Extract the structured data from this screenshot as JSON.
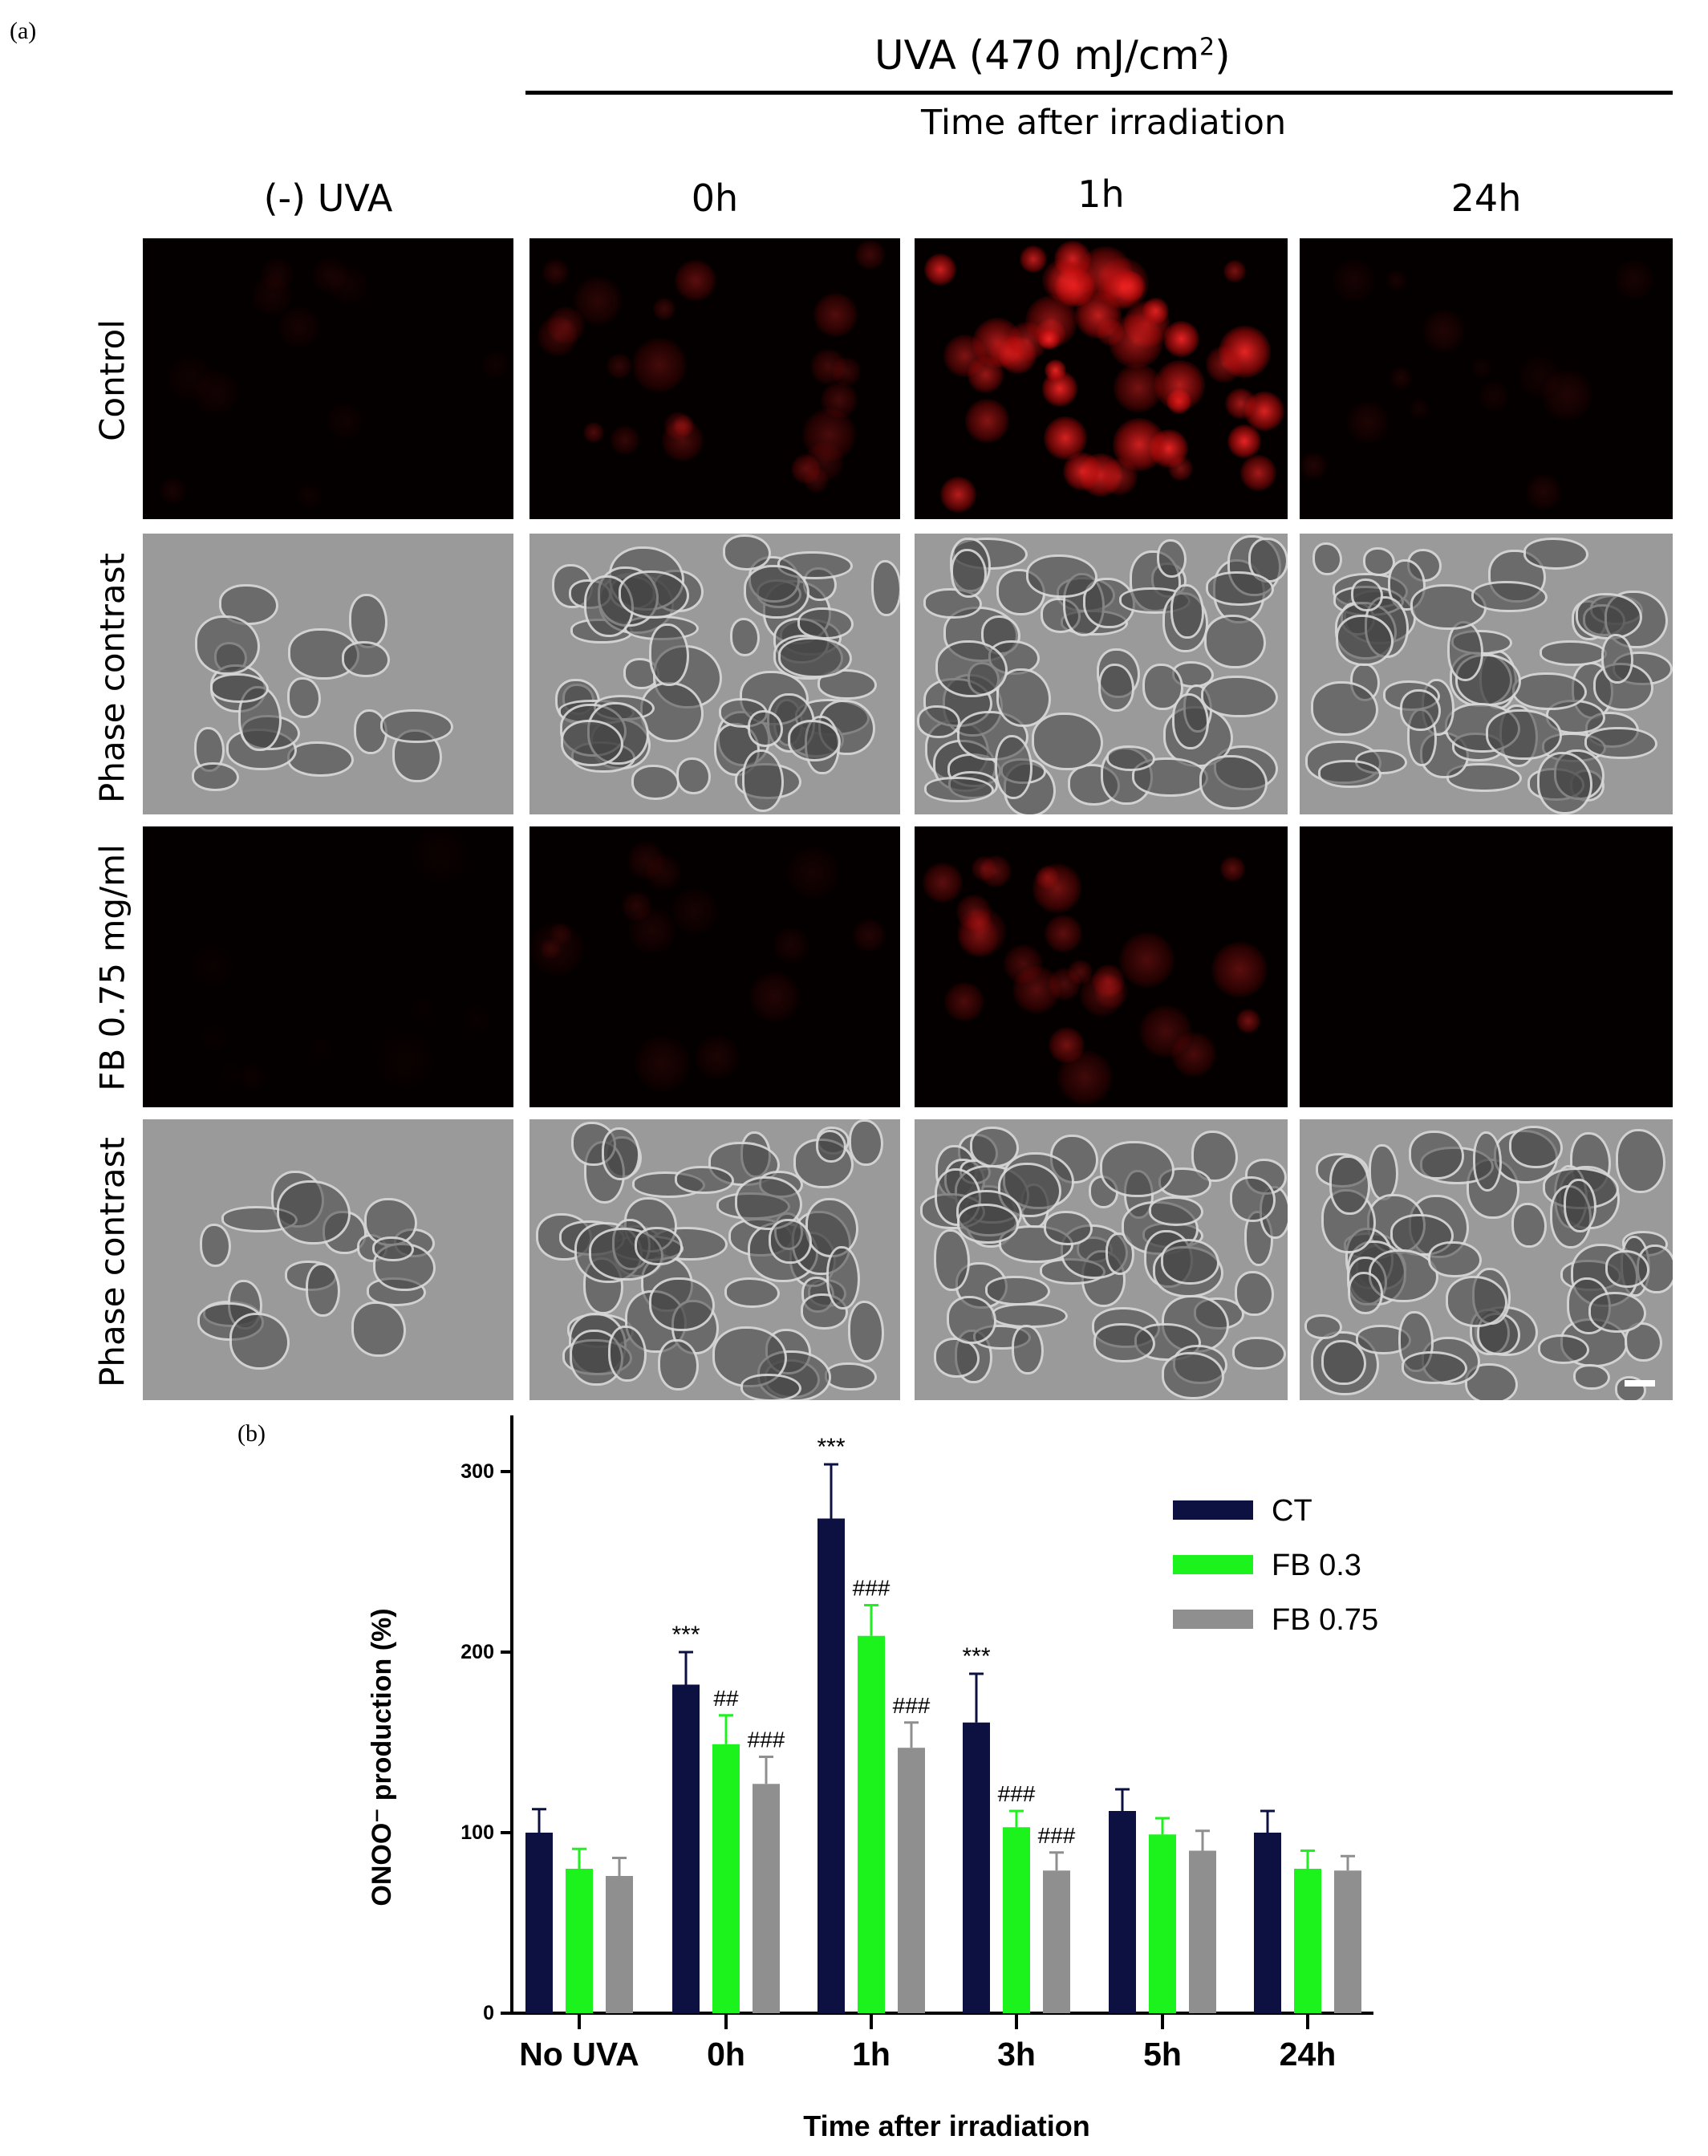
{
  "panel_a": {
    "label": "(a)",
    "uva_title": "UVA (470 mJ/cm",
    "uva_title_sup": "2",
    "uva_title_end": ")",
    "subtitle": "Time after irradiation",
    "columns": [
      "(-) UVA",
      "0h",
      "1h",
      "24h"
    ],
    "rows": [
      "Control",
      "Phase contrast",
      "FB 0.75 mg/ml",
      "Phase contrast"
    ],
    "fluor_color": "#ff2020"
  },
  "panel_b": {
    "label": "(b)"
  },
  "chart_data": {
    "type": "bar",
    "categories": [
      "No UVA",
      "0h",
      "1h",
      "3h",
      "5h",
      "24h"
    ],
    "xlabel": "Time after irradiation",
    "ylabel": "ONOO⁻ production (%)",
    "ylim": [
      0,
      320
    ],
    "yticks": [
      0,
      100,
      200,
      300
    ],
    "legend_position": "top-right",
    "series": [
      {
        "name": "CT",
        "color": "#0d1142",
        "values": [
          100,
          182,
          274,
          161,
          112,
          100
        ],
        "errors": [
          13,
          18,
          30,
          27,
          12,
          12
        ]
      },
      {
        "name": "FB 0.3",
        "color": "#1cf21c",
        "values": [
          80,
          149,
          209,
          103,
          99,
          80
        ],
        "errors": [
          11,
          16,
          17,
          9,
          9,
          10
        ]
      },
      {
        "name": "FB 0.75",
        "color": "#8f8f8f",
        "values": [
          76,
          127,
          147,
          79,
          90,
          79
        ],
        "errors": [
          10,
          15,
          14,
          10,
          11,
          8
        ]
      }
    ],
    "annotations": [
      [
        "",
        "***",
        "***",
        "***",
        "",
        ""
      ],
      [
        "",
        "##",
        "###",
        "###",
        "",
        ""
      ],
      [
        "",
        "###",
        "###",
        "###",
        "",
        ""
      ]
    ]
  }
}
